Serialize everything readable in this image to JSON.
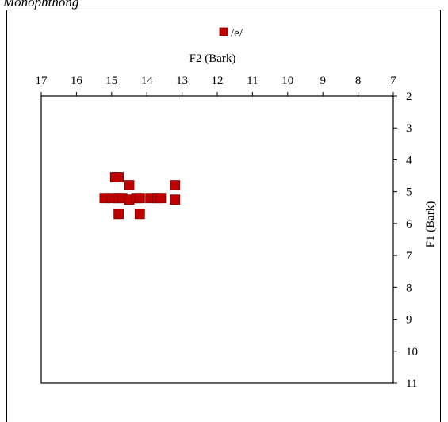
{
  "caption": "Monophthong",
  "chart_data": {
    "type": "scatter",
    "xlabel": "F2 (Bark)",
    "ylabel": "F1 (Bark)",
    "xlim": [
      17,
      7
    ],
    "ylim": [
      2,
      11
    ],
    "x_axis_position": "top",
    "y_axis_position": "right",
    "x_ticks": [
      17,
      16,
      15,
      14,
      13,
      12,
      11,
      10,
      9,
      8,
      7
    ],
    "y_ticks": [
      2,
      3,
      4,
      5,
      6,
      7,
      8,
      9,
      10,
      11
    ],
    "grid": false,
    "legend_position": "top-center",
    "series": [
      {
        "name": "/e/",
        "color": "#c00000",
        "marker": "square",
        "points": [
          [
            14.9,
            4.55
          ],
          [
            14.8,
            4.55
          ],
          [
            14.5,
            4.8
          ],
          [
            13.2,
            4.8
          ],
          [
            15.2,
            5.2
          ],
          [
            15.0,
            5.2
          ],
          [
            14.8,
            5.2
          ],
          [
            14.7,
            5.2
          ],
          [
            14.5,
            5.25
          ],
          [
            14.3,
            5.2
          ],
          [
            14.2,
            5.2
          ],
          [
            13.9,
            5.2
          ],
          [
            13.7,
            5.2
          ],
          [
            13.6,
            5.2
          ],
          [
            13.2,
            5.25
          ],
          [
            14.8,
            5.7
          ],
          [
            14.2,
            5.7
          ]
        ]
      }
    ]
  }
}
